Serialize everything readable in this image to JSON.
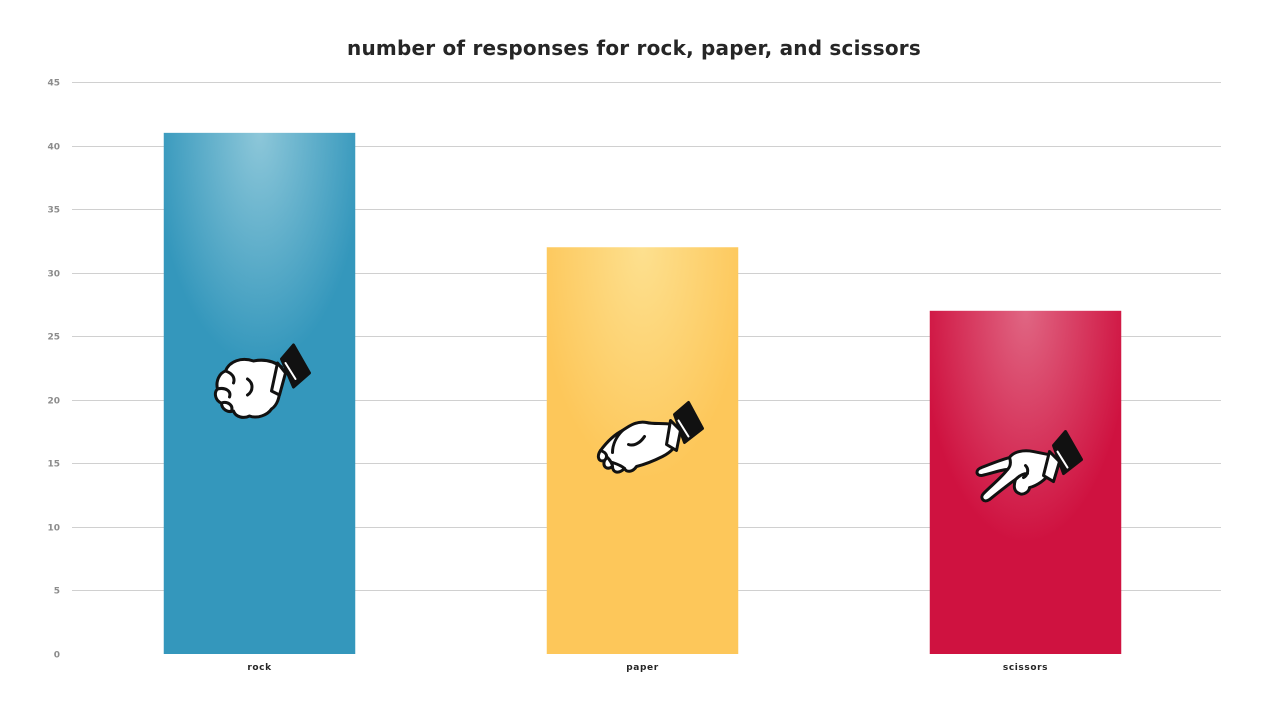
{
  "chart_data": {
    "type": "bar",
    "title": "number of responses for rock, paper, and scissors",
    "xlabel": "",
    "ylabel": "",
    "categories": [
      "rock",
      "paper",
      "scissors"
    ],
    "values": [
      41,
      32,
      27
    ],
    "ylim": [
      0,
      45
    ],
    "yticks": [
      0,
      5,
      10,
      15,
      20,
      25,
      30,
      35,
      40,
      45
    ],
    "grid": true,
    "legend": "none",
    "bar_colors": [
      "#3497bc",
      "#fdc75a",
      "#cf1240"
    ],
    "bar_highlight_colors": [
      "#8dc7d9",
      "#fde08f",
      "#e06683"
    ],
    "bar_icons": [
      "rock-hand-icon",
      "paper-hand-icon",
      "scissors-hand-icon"
    ]
  }
}
